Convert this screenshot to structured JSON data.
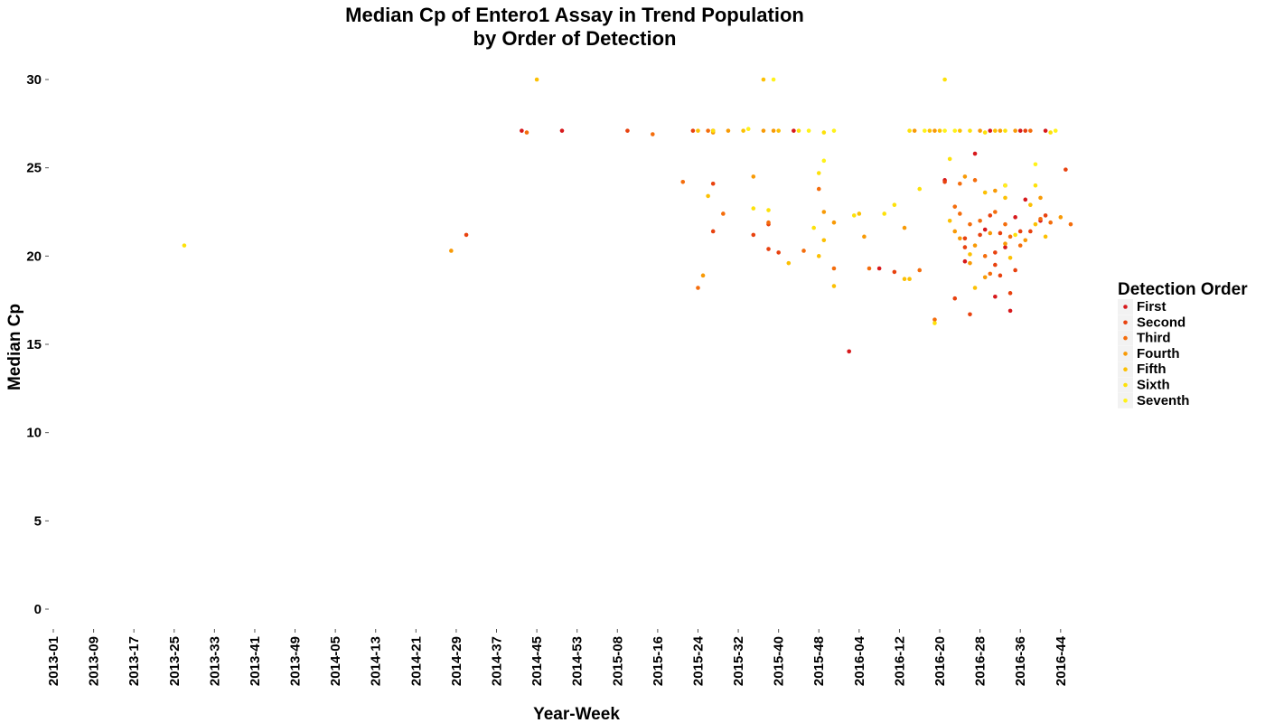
{
  "chart_data": {
    "type": "scatter",
    "title": "Median Cp of Entero1 Assay in Trend Population",
    "subtitle": "by Order of Detection",
    "xlabel": "Year-Week",
    "ylabel": "Median Cp",
    "ylim": [
      0,
      30
    ],
    "y_ticks": [
      "0",
      "5",
      "10",
      "15",
      "20",
      "25",
      "30"
    ],
    "x_ticks": [
      "2013-01",
      "2013-09",
      "2013-17",
      "2013-25",
      "2013-33",
      "2013-41",
      "2013-49",
      "2014-05",
      "2014-13",
      "2014-21",
      "2014-29",
      "2014-37",
      "2014-45",
      "2014-53",
      "2015-08",
      "2015-16",
      "2015-24",
      "2015-32",
      "2015-40",
      "2015-48",
      "2016-04",
      "2016-12",
      "2016-20",
      "2016-28",
      "2016-36",
      "2016-44"
    ],
    "grid": false,
    "legend": {
      "title": "Detection Order",
      "position": "right",
      "entries": [
        {
          "label": "First",
          "color": "#d7191c"
        },
        {
          "label": "Second",
          "color": "#e8420f"
        },
        {
          "label": "Third",
          "color": "#f46d0c"
        },
        {
          "label": "Fourth",
          "color": "#f89a06"
        },
        {
          "label": "Fifth",
          "color": "#fcc003"
        },
        {
          "label": "Sixth",
          "color": "#fde10a"
        },
        {
          "label": "Seventh",
          "color": "#fff21a"
        }
      ]
    },
    "series": [
      {
        "name": "First",
        "points": [
          [
            "2014-42",
            27.1
          ],
          [
            "2014-50",
            27.1
          ],
          [
            "2015-27",
            27.1
          ],
          [
            "2015-43",
            27.1
          ],
          [
            "2016-02",
            14.6
          ],
          [
            "2016-08",
            19.3
          ],
          [
            "2016-21",
            24.3
          ],
          [
            "2016-25",
            19.7
          ],
          [
            "2016-27",
            25.8
          ],
          [
            "2016-29",
            21.5
          ],
          [
            "2016-30",
            27.1
          ],
          [
            "2016-31",
            17.7
          ],
          [
            "2016-33",
            20.5
          ],
          [
            "2016-33",
            24.0
          ],
          [
            "2016-34",
            16.9
          ],
          [
            "2016-35",
            22.2
          ],
          [
            "2016-36",
            27.1
          ],
          [
            "2016-37",
            23.2
          ],
          [
            "2016-40",
            22.0
          ],
          [
            "2016-41",
            27.1
          ]
        ]
      },
      {
        "name": "Second",
        "points": [
          [
            "2014-31",
            21.2
          ],
          [
            "2015-10",
            27.1
          ],
          [
            "2015-23",
            27.1
          ],
          [
            "2015-27",
            24.1
          ],
          [
            "2015-27",
            21.4
          ],
          [
            "2015-35",
            21.2
          ],
          [
            "2015-38",
            21.8
          ],
          [
            "2015-38",
            20.4
          ],
          [
            "2015-40",
            20.2
          ],
          [
            "2016-11",
            19.1
          ],
          [
            "2016-21",
            24.2
          ],
          [
            "2016-23",
            17.6
          ],
          [
            "2016-25",
            21.0
          ],
          [
            "2016-25",
            20.5
          ],
          [
            "2016-26",
            16.7
          ],
          [
            "2016-28",
            21.2
          ],
          [
            "2016-30",
            22.3
          ],
          [
            "2016-31",
            20.2
          ],
          [
            "2016-31",
            19.5
          ],
          [
            "2016-32",
            18.9
          ],
          [
            "2016-32",
            21.3
          ],
          [
            "2016-34",
            17.9
          ],
          [
            "2016-35",
            19.2
          ],
          [
            "2016-36",
            21.4
          ],
          [
            "2016-37",
            27.1
          ],
          [
            "2016-38",
            21.4
          ],
          [
            "2016-41",
            22.3
          ],
          [
            "2016-45",
            24.9
          ]
        ]
      },
      {
        "name": "Third",
        "points": [
          [
            "2014-43",
            27.0
          ],
          [
            "2015-15",
            26.9
          ],
          [
            "2015-21",
            24.2
          ],
          [
            "2015-24",
            18.2
          ],
          [
            "2015-26",
            27.1
          ],
          [
            "2015-29",
            22.4
          ],
          [
            "2015-38",
            21.9
          ],
          [
            "2015-45",
            20.3
          ],
          [
            "2015-48",
            23.8
          ],
          [
            "2015-51",
            19.3
          ],
          [
            "2016-06",
            19.3
          ],
          [
            "2016-16",
            19.2
          ],
          [
            "2016-19",
            16.4
          ],
          [
            "2016-23",
            22.8
          ],
          [
            "2016-24",
            24.1
          ],
          [
            "2016-24",
            22.4
          ],
          [
            "2016-26",
            21.8
          ],
          [
            "2016-27",
            24.3
          ],
          [
            "2016-28",
            22.0
          ],
          [
            "2016-29",
            20.0
          ],
          [
            "2016-30",
            19.0
          ],
          [
            "2016-31",
            22.5
          ],
          [
            "2016-33",
            21.8
          ],
          [
            "2016-34",
            21.1
          ],
          [
            "2016-36",
            20.6
          ],
          [
            "2016-38",
            27.1
          ],
          [
            "2016-40",
            22.1
          ],
          [
            "2016-42",
            21.9
          ],
          [
            "2016-46",
            21.8
          ]
        ]
      },
      {
        "name": "Fourth",
        "points": [
          [
            "2014-28",
            20.3
          ],
          [
            "2015-25",
            18.9
          ],
          [
            "2015-27",
            27.0
          ],
          [
            "2015-30",
            27.1
          ],
          [
            "2015-35",
            24.5
          ],
          [
            "2015-37",
            27.1
          ],
          [
            "2015-39",
            27.1
          ],
          [
            "2015-49",
            22.5
          ],
          [
            "2015-51",
            21.9
          ],
          [
            "2016-05",
            21.1
          ],
          [
            "2016-13",
            21.6
          ],
          [
            "2016-15",
            27.1
          ],
          [
            "2016-19",
            27.1
          ],
          [
            "2016-23",
            21.4
          ],
          [
            "2016-24",
            21.0
          ],
          [
            "2016-25",
            24.5
          ],
          [
            "2016-26",
            19.6
          ],
          [
            "2016-27",
            20.6
          ],
          [
            "2016-28",
            27.1
          ],
          [
            "2016-29",
            18.8
          ],
          [
            "2016-30",
            21.3
          ],
          [
            "2016-31",
            23.7
          ],
          [
            "2016-32",
            27.1
          ],
          [
            "2016-33",
            20.7
          ],
          [
            "2016-35",
            27.1
          ],
          [
            "2016-37",
            20.9
          ],
          [
            "2016-40",
            23.3
          ],
          [
            "2016-44",
            22.2
          ]
        ]
      },
      {
        "name": "Fifth",
        "points": [
          [
            "2014-45",
            30.0
          ],
          [
            "2015-24",
            27.1
          ],
          [
            "2015-26",
            23.4
          ],
          [
            "2015-33",
            27.1
          ],
          [
            "2015-37",
            30.0
          ],
          [
            "2015-40",
            27.1
          ],
          [
            "2015-42",
            19.6
          ],
          [
            "2015-48",
            20.0
          ],
          [
            "2015-49",
            20.9
          ],
          [
            "2015-51",
            18.3
          ],
          [
            "2016-04",
            22.4
          ],
          [
            "2016-13",
            18.7
          ],
          [
            "2016-14",
            18.7
          ],
          [
            "2016-18",
            27.1
          ],
          [
            "2016-20",
            27.1
          ],
          [
            "2016-22",
            22.0
          ],
          [
            "2016-24",
            27.1
          ],
          [
            "2016-26",
            20.1
          ],
          [
            "2016-27",
            18.2
          ],
          [
            "2016-29",
            23.6
          ],
          [
            "2016-31",
            27.1
          ],
          [
            "2016-33",
            23.3
          ],
          [
            "2016-34",
            19.9
          ],
          [
            "2016-38",
            22.9
          ],
          [
            "2016-39",
            21.8
          ],
          [
            "2016-41",
            21.1
          ]
        ]
      },
      {
        "name": "Sixth",
        "points": [
          [
            "2013-27",
            20.6
          ],
          [
            "2015-27",
            27.1
          ],
          [
            "2015-35",
            22.7
          ],
          [
            "2015-38",
            22.6
          ],
          [
            "2015-44",
            27.1
          ],
          [
            "2015-47",
            21.6
          ],
          [
            "2015-48",
            24.7
          ],
          [
            "2015-49",
            27.0
          ],
          [
            "2016-03",
            22.3
          ],
          [
            "2016-09",
            22.4
          ],
          [
            "2016-11",
            22.9
          ],
          [
            "2016-14",
            27.1
          ],
          [
            "2016-16",
            23.8
          ],
          [
            "2016-19",
            16.2
          ],
          [
            "2016-21",
            30.0
          ],
          [
            "2016-22",
            25.5
          ],
          [
            "2016-26",
            27.1
          ],
          [
            "2016-29",
            27.0
          ],
          [
            "2016-33",
            27.1
          ],
          [
            "2016-35",
            21.2
          ],
          [
            "2016-39",
            24.0
          ],
          [
            "2016-42",
            27.0
          ]
        ]
      },
      {
        "name": "Seventh",
        "points": [
          [
            "2015-34",
            27.2
          ],
          [
            "2015-39",
            30.0
          ],
          [
            "2015-46",
            27.1
          ],
          [
            "2015-49",
            25.4
          ],
          [
            "2015-51",
            27.1
          ],
          [
            "2016-17",
            27.1
          ],
          [
            "2016-21",
            27.1
          ],
          [
            "2016-23",
            27.1
          ],
          [
            "2016-33",
            24.0
          ],
          [
            "2016-39",
            25.2
          ],
          [
            "2016-43",
            27.1
          ]
        ]
      }
    ]
  }
}
